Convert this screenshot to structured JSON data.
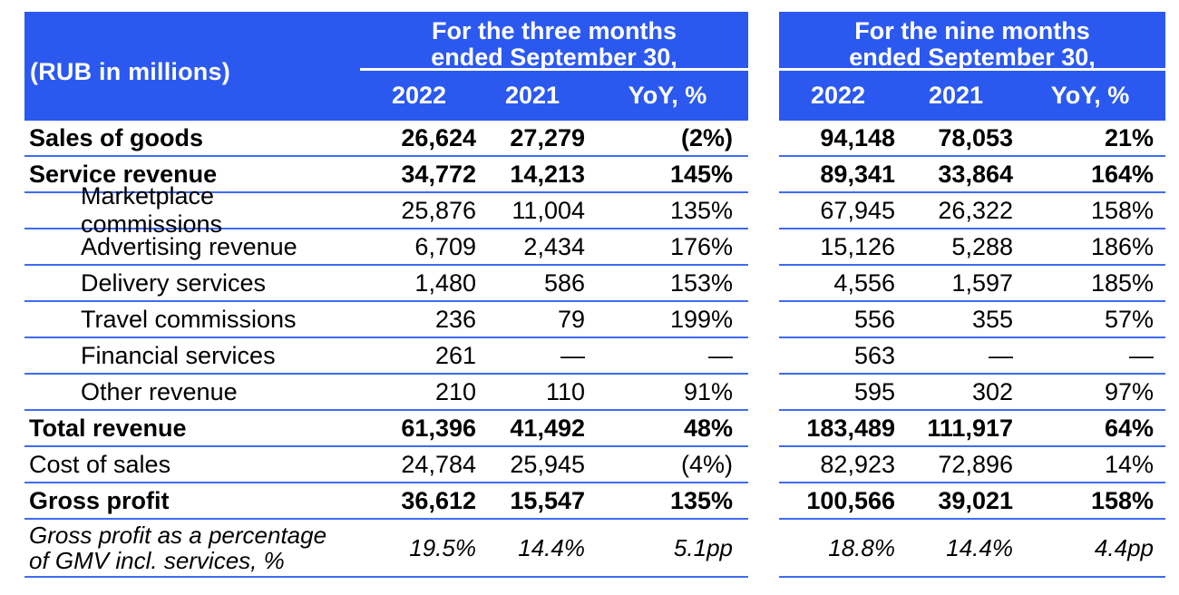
{
  "colors": {
    "accent_blue": "#2B59F0",
    "separator_blue": "#3F6BF2",
    "header_text": "#FFFFFF",
    "body_text": "#000000"
  },
  "table": {
    "unit_label": "(RUB in millions)",
    "groups": [
      {
        "title_line1": "For the three months",
        "title_line2": "ended September 30,",
        "columns": [
          "2022",
          "2021",
          "YoY, %"
        ]
      },
      {
        "title_line1": "For the nine months",
        "title_line2": "ended September 30,",
        "columns": [
          "2022",
          "2021",
          "YoY, %"
        ]
      }
    ],
    "rows": [
      {
        "label": "Sales of goods",
        "bold": true,
        "indent": false,
        "italic": false,
        "tall": false,
        "three_months": [
          "26,624",
          "27,279",
          "(2%)"
        ],
        "nine_months": [
          "94,148",
          "78,053",
          "21%"
        ]
      },
      {
        "label": "Service revenue",
        "bold": true,
        "indent": false,
        "italic": false,
        "tall": false,
        "three_months": [
          "34,772",
          "14,213",
          "145%"
        ],
        "nine_months": [
          "89,341",
          "33,864",
          "164%"
        ]
      },
      {
        "label": "Marketplace commissions",
        "bold": false,
        "indent": true,
        "italic": false,
        "tall": false,
        "three_months": [
          "25,876",
          "11,004",
          "135%"
        ],
        "nine_months": [
          "67,945",
          "26,322",
          "158%"
        ]
      },
      {
        "label": "Advertising revenue",
        "bold": false,
        "indent": true,
        "italic": false,
        "tall": false,
        "three_months": [
          "6,709",
          "2,434",
          "176%"
        ],
        "nine_months": [
          "15,126",
          "5,288",
          "186%"
        ]
      },
      {
        "label": "Delivery services",
        "bold": false,
        "indent": true,
        "italic": false,
        "tall": false,
        "three_months": [
          "1,480",
          "586",
          "153%"
        ],
        "nine_months": [
          "4,556",
          "1,597",
          "185%"
        ]
      },
      {
        "label": "Travel commissions",
        "bold": false,
        "indent": true,
        "italic": false,
        "tall": false,
        "three_months": [
          "236",
          "79",
          "199%"
        ],
        "nine_months": [
          "556",
          "355",
          "57%"
        ]
      },
      {
        "label": "Financial services",
        "bold": false,
        "indent": true,
        "italic": false,
        "tall": false,
        "three_months": [
          "261",
          "—",
          "—"
        ],
        "nine_months": [
          "563",
          "—",
          "—"
        ]
      },
      {
        "label": "Other revenue",
        "bold": false,
        "indent": true,
        "italic": false,
        "tall": false,
        "three_months": [
          "210",
          "110",
          "91%"
        ],
        "nine_months": [
          "595",
          "302",
          "97%"
        ]
      },
      {
        "label": "Total revenue",
        "bold": true,
        "indent": false,
        "italic": false,
        "tall": false,
        "three_months": [
          "61,396",
          "41,492",
          "48%"
        ],
        "nine_months": [
          "183,489",
          "111,917",
          "64%"
        ]
      },
      {
        "label": "Cost of sales",
        "bold": false,
        "indent": false,
        "italic": false,
        "tall": false,
        "three_months": [
          "24,784",
          "25,945",
          "(4%)"
        ],
        "nine_months": [
          "82,923",
          "72,896",
          "14%"
        ]
      },
      {
        "label": "Gross profit",
        "bold": true,
        "indent": false,
        "italic": false,
        "tall": false,
        "three_months": [
          "36,612",
          "15,547",
          "135%"
        ],
        "nine_months": [
          "100,566",
          "39,021",
          "158%"
        ]
      },
      {
        "label": "Gross profit as a percentage\nof GMV incl. services, %",
        "bold": false,
        "indent": false,
        "italic": true,
        "tall": true,
        "three_months": [
          "19.5%",
          "14.4%",
          "5.1pp"
        ],
        "nine_months": [
          "18.8%",
          "14.4%",
          "4.4pp"
        ]
      }
    ]
  }
}
